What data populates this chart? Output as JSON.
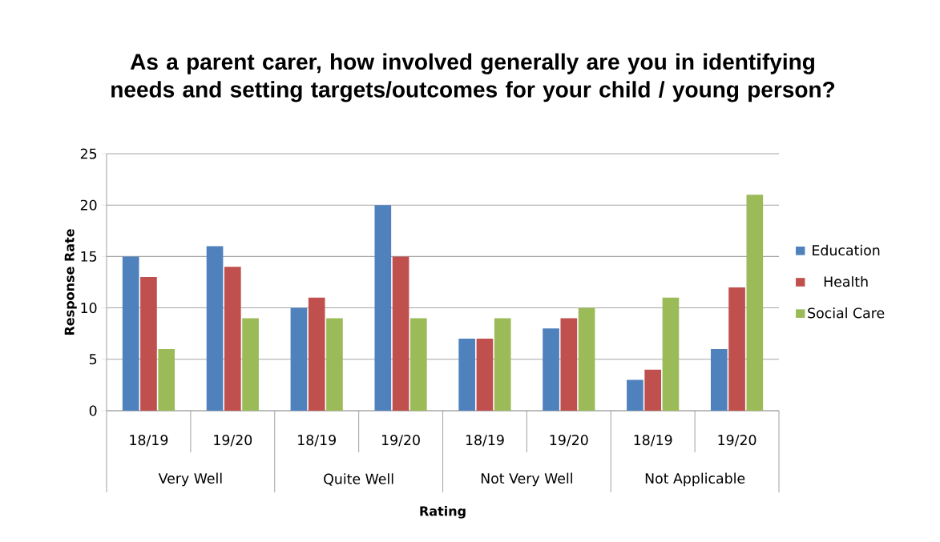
{
  "chart_data": {
    "type": "bar",
    "title": "As a parent carer, how involved generally are you in identifying needs and setting targets/outcomes for your child / young person?",
    "xlabel": "Rating",
    "ylabel": "Response Rate",
    "categories": [
      "18/19",
      "19/20",
      "18/19",
      "19/20",
      "18/19",
      "19/20",
      "18/19",
      "19/20"
    ],
    "annotations": [
      "Very Well",
      "Quite Well",
      "Not Very Well",
      "Not Applicable"
    ],
    "series": [
      {
        "name": "Education",
        "color": "#4f81bd",
        "values": [
          15,
          16,
          10,
          20,
          7,
          8,
          3,
          6
        ]
      },
      {
        "name": "Health",
        "color": "#c0504d",
        "values": [
          13,
          14,
          11,
          15,
          7,
          9,
          4,
          12
        ]
      },
      {
        "name": "Social Care",
        "color": "#9bbb59",
        "values": [
          6,
          9,
          9,
          9,
          9,
          10,
          11,
          21
        ]
      }
    ],
    "ylim": [
      0,
      25
    ],
    "yticks": [
      0,
      5,
      10,
      15,
      20,
      25
    ],
    "grid": "y",
    "legend": "right"
  }
}
